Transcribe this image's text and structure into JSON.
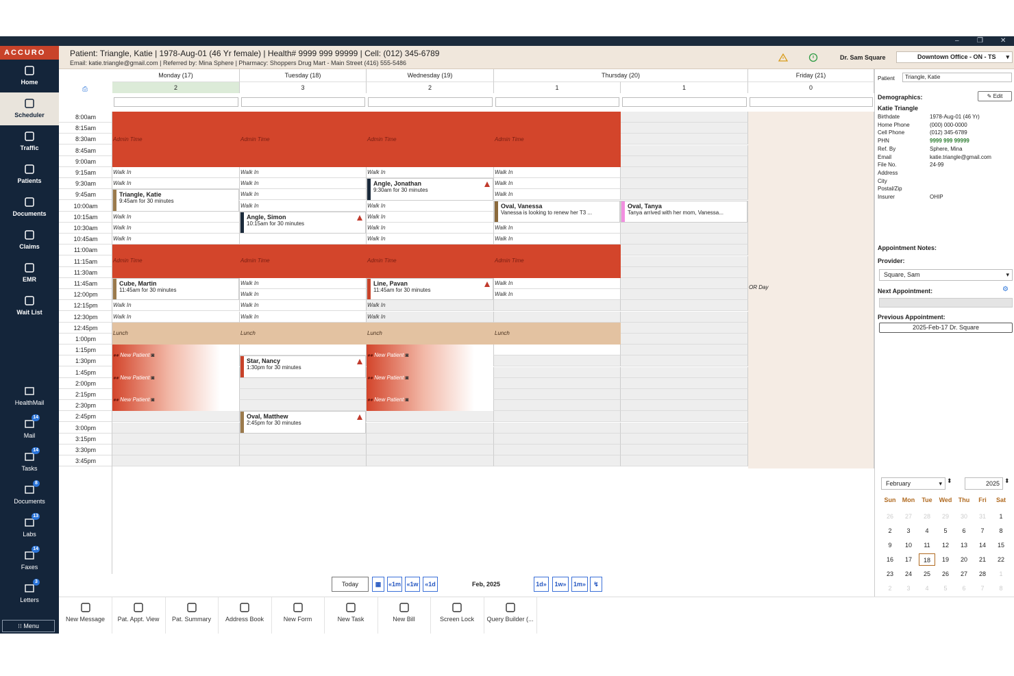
{
  "window": {
    "minimize": "–",
    "restore": "❐",
    "close": "✕"
  },
  "app": {
    "logo": "ACCURO",
    "menu": "Menu"
  },
  "nav": [
    {
      "label": "Home",
      "icon": "home-icon"
    },
    {
      "label": "Scheduler",
      "icon": "calendar-icon",
      "active": true
    },
    {
      "label": "Traffic",
      "icon": "signpost-icon"
    },
    {
      "label": "Patients",
      "icon": "person-icon"
    },
    {
      "label": "Documents",
      "icon": "document-icon"
    },
    {
      "label": "Claims",
      "icon": "dollar-icon"
    },
    {
      "label": "EMR",
      "icon": "asterisk-icon"
    },
    {
      "label": "Wait List",
      "icon": "group-icon"
    }
  ],
  "inbox": [
    {
      "label": "HealthMail",
      "badge": ""
    },
    {
      "label": "Mail",
      "badge": "14"
    },
    {
      "label": "Tasks",
      "badge": "14"
    },
    {
      "label": "Documents",
      "badge": "8"
    },
    {
      "label": "Labs",
      "badge": "13"
    },
    {
      "label": "Faxes",
      "badge": "14"
    },
    {
      "label": "Letters",
      "badge": "3"
    }
  ],
  "patient_header": {
    "line1": "Patient: Triangle, Katie | 1978-Aug-01 (46 Yr female) | Health# 9999 999 99999 | Cell: (012) 345-6789",
    "line2": "Email: katie.triangle@gmail.com | Referred by: Mina Sphere | Pharmacy: Shoppers Drug Mart - Main Street (416) 555-5486",
    "provider": "Dr. Sam Square",
    "office": "Downtown Office - ON - TS"
  },
  "days": [
    {
      "name": "Monday (17)",
      "count": "2"
    },
    {
      "name": "Tuesday (18)",
      "count": "3"
    },
    {
      "name": "Wednesday (19)",
      "count": "2"
    },
    {
      "name": "Thursday (20)",
      "count": "1"
    },
    {
      "name": "",
      "count": "1"
    },
    {
      "name": "Friday (21)",
      "count": "0"
    }
  ],
  "times": [
    "8:00am",
    "8:15am",
    "8:30am",
    "8:45am",
    "9:00am",
    "9:15am",
    "9:30am",
    "9:45am",
    "10:00am",
    "10:15am",
    "10:30am",
    "10:45am",
    "11:00am",
    "11:15am",
    "11:30am",
    "11:45am",
    "12:00pm",
    "12:15pm",
    "12:30pm",
    "12:45pm",
    "1:00pm",
    "1:15pm",
    "1:30pm",
    "1:45pm",
    "2:00pm",
    "2:15pm",
    "2:30pm",
    "2:45pm",
    "3:00pm",
    "3:15pm",
    "3:30pm",
    "3:45pm"
  ],
  "labels": {
    "admin": "Admin Time",
    "walk": "Walk In",
    "lunch": "Lunch",
    "new_patient": "New Patient",
    "or_day": "OR Day"
  },
  "appointments": [
    {
      "name": "Triangle, Katie",
      "detail": "9:45am for 30 minutes"
    },
    {
      "name": "Angle, Simon",
      "detail": "10:15am for 30 minutes"
    },
    {
      "name": "Angle, Jonathan",
      "detail": "9:30am for 30 minutes"
    },
    {
      "name": "Oval, Vanessa",
      "detail": "Vanessa is looking to renew her T3 ..."
    },
    {
      "name": "Oval, Tanya",
      "detail": "Tanya arrived with her mom, Vanessa..."
    },
    {
      "name": "Cube, Martin",
      "detail": "11:45am for 30 minutes"
    },
    {
      "name": "Line, Pavan",
      "detail": "11:45am for 30 minutes"
    },
    {
      "name": "Star, Nancy",
      "detail": "1:30pm for 30 minutes"
    },
    {
      "name": "Oval, Matthew",
      "detail": "2:45pm for 30 minutes"
    }
  ],
  "navbar": {
    "today": "Today",
    "month_label": "Feb, 2025",
    "back_month": "«1m",
    "back_week": "«1w",
    "back_day": "«1d",
    "fwd_day": "1d»",
    "fwd_week": "1w»",
    "fwd_month": "1m»"
  },
  "right_panel": {
    "patient_label": "Patient",
    "patient_value": "Triangle, Katie",
    "demographics": "Demographics:",
    "edit": "Edit",
    "name": "Katie Triangle",
    "fields": [
      {
        "k": "Birthdate",
        "v": "1978-Aug-01 (46 Yr)"
      },
      {
        "k": "Home Phone",
        "v": "(000) 000-0000"
      },
      {
        "k": "Cell Phone",
        "v": "(012) 345-6789"
      },
      {
        "k": "PHN",
        "v": "9999 999 99999"
      },
      {
        "k": "Ref. By",
        "v": "Sphere, Mina"
      },
      {
        "k": "Email",
        "v": "katie.triangle@gmail.com"
      },
      {
        "k": "File No.",
        "v": "24-99"
      },
      {
        "k": "Address",
        "v": ""
      },
      {
        "k": "City",
        "v": ""
      },
      {
        "k": "Postal/Zip",
        "v": ""
      },
      {
        "k": "Insurer",
        "v": "OHIP"
      }
    ],
    "appt_notes": "Appointment Notes:",
    "provider_label": "Provider:",
    "provider_value": "Square, Sam",
    "next_appt": "Next Appointment:",
    "prev_appt": "Previous Appointment:",
    "prev_value": "2025-Feb-17  Dr. Square"
  },
  "mini_calendar": {
    "month": "February",
    "year": "2025",
    "dow": [
      "Sun",
      "Mon",
      "Tue",
      "Wed",
      "Thu",
      "Fri",
      "Sat"
    ],
    "weeks": [
      [
        "26",
        "27",
        "28",
        "29",
        "30",
        "31",
        "1"
      ],
      [
        "2",
        "3",
        "4",
        "5",
        "6",
        "7",
        "8"
      ],
      [
        "9",
        "10",
        "11",
        "12",
        "13",
        "14",
        "15"
      ],
      [
        "16",
        "17",
        "18",
        "19",
        "20",
        "21",
        "22"
      ],
      [
        "23",
        "24",
        "25",
        "26",
        "27",
        "28",
        "1"
      ],
      [
        "2",
        "3",
        "4",
        "5",
        "6",
        "7",
        "8"
      ]
    ],
    "selected": "18"
  },
  "toolbar": [
    "New Message",
    "Pat. Appt. View",
    "Pat. Summary",
    "Address Book",
    "New Form",
    "New Task",
    "New Bill",
    "Screen Lock",
    "Query Builder (..."
  ],
  "colors": {
    "admin": "#d3452b",
    "lunch": "#e3c2a1",
    "sidebar": "#14253a",
    "accent": "#c8432a"
  }
}
